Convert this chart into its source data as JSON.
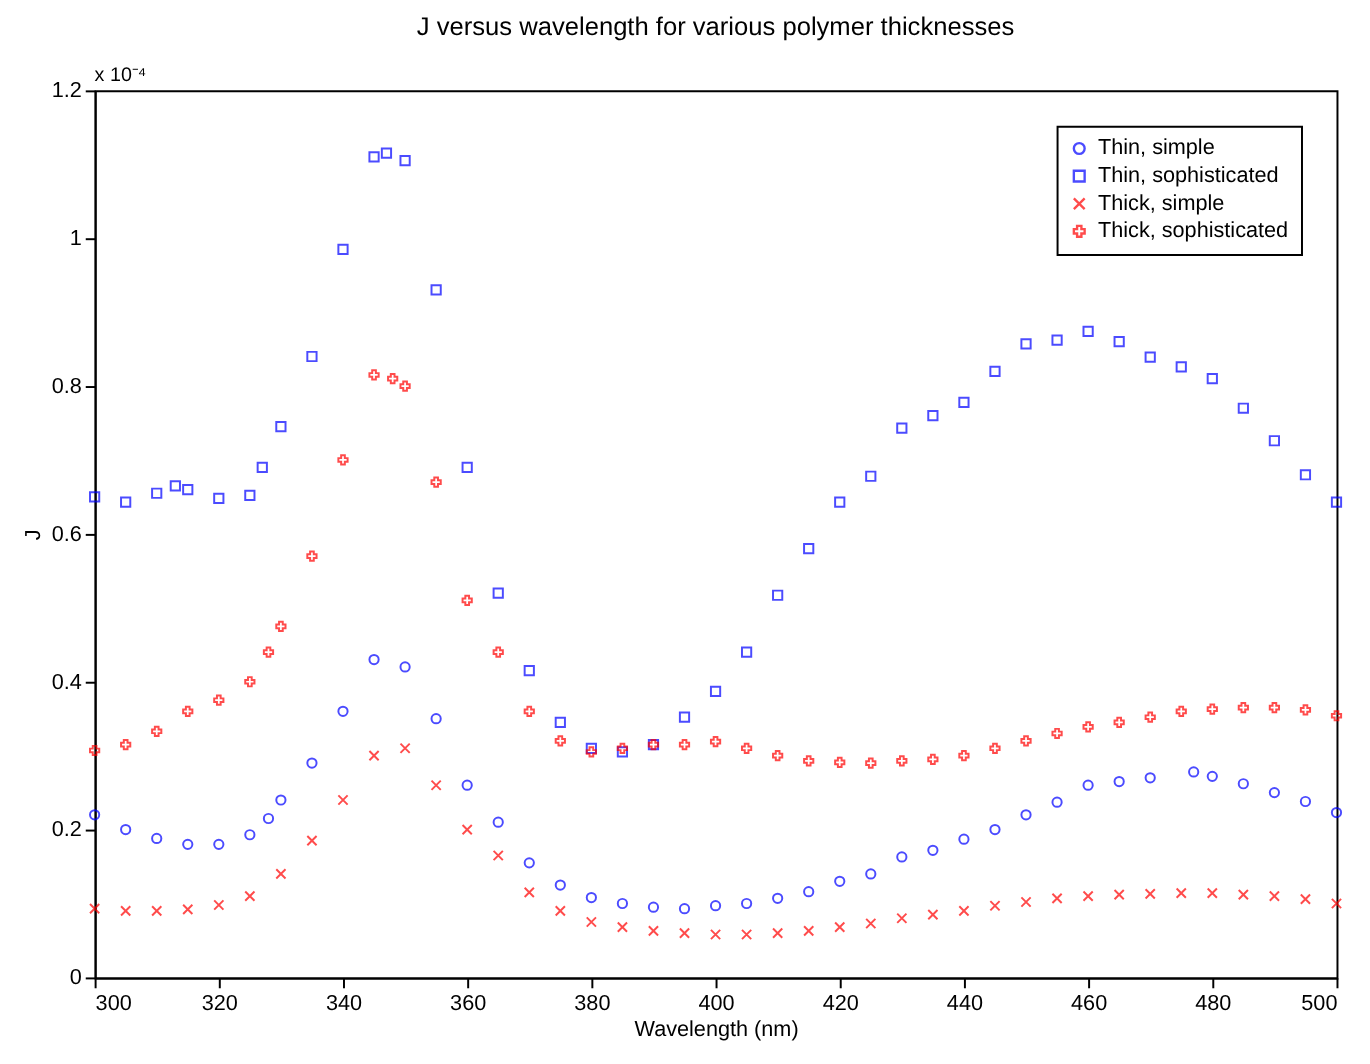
{
  "chart_data": {
    "type": "scatter",
    "title": "J versus wavelength for various polymer thicknesses",
    "xlabel": "Wavelength (nm)",
    "ylabel": "J",
    "annotations": [
      "x 10⁻⁴"
    ],
    "xlim": [
      300,
      500
    ],
    "xticks": [
      300,
      320,
      340,
      360,
      380,
      400,
      420,
      440,
      460,
      480,
      500
    ],
    "ylim": [
      0,
      1.2
    ],
    "yticks": [
      0,
      0.2,
      0.4,
      0.6,
      0.8,
      1,
      1.2
    ],
    "grid": false,
    "legend": "top right",
    "series": [
      {
        "name": "Thin, simple",
        "color": "#0000ff",
        "marker": "circle",
        "x": [
          300,
          305,
          310,
          315,
          320,
          325,
          328,
          330,
          335,
          340,
          345,
          350,
          355,
          360,
          365,
          370,
          375,
          380,
          385,
          390,
          395,
          400,
          405,
          410,
          415,
          420,
          425,
          430,
          435,
          440,
          445,
          450,
          455,
          460,
          465,
          470,
          477,
          480,
          485,
          490,
          495,
          500
        ],
        "values": [
          0.22,
          0.2,
          0.188,
          0.18,
          0.18,
          0.193,
          0.215,
          0.24,
          0.29,
          0.36,
          0.43,
          0.42,
          0.35,
          0.26,
          0.21,
          0.155,
          0.125,
          0.108,
          0.1,
          0.095,
          0.093,
          0.097,
          0.1,
          0.107,
          0.116,
          0.13,
          0.14,
          0.163,
          0.172,
          0.187,
          0.2,
          0.22,
          0.237,
          0.26,
          0.265,
          0.27,
          0.278,
          0.272,
          0.262,
          0.25,
          0.238,
          0.223
        ]
      },
      {
        "name": "Thin, sophisticated",
        "color": "#0000ff",
        "marker": "square",
        "x": [
          300,
          305,
          310,
          313,
          315,
          320,
          325,
          327,
          330,
          335,
          340,
          345,
          347,
          350,
          355,
          360,
          365,
          370,
          375,
          380,
          385,
          390,
          395,
          400,
          405,
          410,
          415,
          420,
          425,
          430,
          435,
          440,
          445,
          450,
          455,
          460,
          465,
          470,
          475,
          480,
          485,
          490,
          495,
          500
        ],
        "values": [
          0.65,
          0.643,
          0.655,
          0.665,
          0.66,
          0.648,
          0.652,
          0.69,
          0.745,
          0.84,
          0.985,
          1.11,
          1.115,
          1.105,
          0.93,
          0.69,
          0.52,
          0.415,
          0.345,
          0.31,
          0.305,
          0.315,
          0.352,
          0.387,
          0.44,
          0.517,
          0.58,
          0.643,
          0.678,
          0.743,
          0.76,
          0.778,
          0.82,
          0.857,
          0.862,
          0.874,
          0.86,
          0.839,
          0.826,
          0.81,
          0.77,
          0.726,
          0.68,
          0.643
        ]
      },
      {
        "name": "Thick, simple",
        "color": "#ff0000",
        "marker": "cross",
        "x": [
          300,
          305,
          310,
          315,
          320,
          325,
          330,
          335,
          340,
          345,
          350,
          355,
          360,
          365,
          370,
          375,
          380,
          385,
          390,
          395,
          400,
          405,
          410,
          415,
          420,
          425,
          430,
          435,
          440,
          445,
          450,
          455,
          460,
          465,
          470,
          475,
          480,
          485,
          490,
          495,
          500
        ],
        "values": [
          0.093,
          0.09,
          0.09,
          0.092,
          0.098,
          0.11,
          0.14,
          0.185,
          0.24,
          0.3,
          0.31,
          0.26,
          0.2,
          0.165,
          0.115,
          0.09,
          0.075,
          0.068,
          0.063,
          0.06,
          0.058,
          0.058,
          0.06,
          0.063,
          0.068,
          0.073,
          0.08,
          0.085,
          0.09,
          0.097,
          0.102,
          0.107,
          0.11,
          0.112,
          0.113,
          0.114,
          0.114,
          0.112,
          0.11,
          0.106,
          0.1
        ]
      },
      {
        "name": "Thick, sophisticated",
        "color": "#ff0000",
        "marker": "plus",
        "x": [
          300,
          305,
          310,
          315,
          320,
          325,
          328,
          330,
          335,
          340,
          345,
          348,
          350,
          355,
          360,
          365,
          370,
          375,
          380,
          385,
          390,
          395,
          400,
          405,
          410,
          415,
          420,
          425,
          430,
          435,
          440,
          445,
          450,
          455,
          460,
          465,
          470,
          475,
          480,
          485,
          490,
          495,
          500
        ],
        "values": [
          0.307,
          0.315,
          0.333,
          0.36,
          0.375,
          0.4,
          0.44,
          0.475,
          0.57,
          0.7,
          0.815,
          0.81,
          0.8,
          0.67,
          0.51,
          0.44,
          0.36,
          0.32,
          0.305,
          0.31,
          0.315,
          0.315,
          0.319,
          0.31,
          0.3,
          0.293,
          0.291,
          0.29,
          0.293,
          0.295,
          0.3,
          0.31,
          0.32,
          0.33,
          0.339,
          0.345,
          0.352,
          0.36,
          0.363,
          0.365,
          0.365,
          0.362,
          0.354
        ]
      }
    ]
  }
}
